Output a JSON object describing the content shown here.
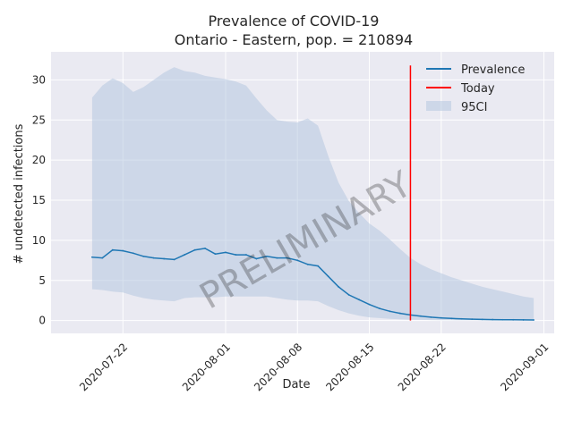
{
  "chart_data": {
    "type": "line",
    "title": "Prevalence of COVID-19",
    "subtitle": "Ontario - Eastern, pop. = 210894",
    "xlabel": "Date",
    "ylabel": "# undetected infections",
    "watermark": "PRELIMINARY",
    "x_axis": {
      "type": "date",
      "range": [
        "2020-07-15",
        "2020-09-02"
      ],
      "tick_labels": [
        "2020-07-22",
        "2020-08-01",
        "2020-08-08",
        "2020-08-15",
        "2020-08-22",
        "2020-09-01"
      ]
    },
    "y_axis": {
      "range": [
        -1.6,
        33.5
      ],
      "ticks": [
        0,
        5,
        10,
        15,
        20,
        25,
        30
      ]
    },
    "grid": true,
    "legend": {
      "position": "top-right",
      "entries": [
        {
          "label": "Prevalence",
          "kind": "line",
          "color": "#1f77b4"
        },
        {
          "label": "Today",
          "kind": "line",
          "color": "#ff0000"
        },
        {
          "label": "95CI",
          "kind": "patch",
          "color": "#b0c4de"
        }
      ]
    },
    "series": [
      {
        "name": "Prevalence",
        "color": "#1f77b4",
        "points": [
          [
            "2020-07-19",
            7.9
          ],
          [
            "2020-07-20",
            7.8
          ],
          [
            "2020-07-21",
            8.8
          ],
          [
            "2020-07-22",
            8.7
          ],
          [
            "2020-07-23",
            8.4
          ],
          [
            "2020-07-24",
            8.0
          ],
          [
            "2020-07-25",
            7.8
          ],
          [
            "2020-07-26",
            7.7
          ],
          [
            "2020-07-27",
            7.6
          ],
          [
            "2020-07-28",
            8.2
          ],
          [
            "2020-07-29",
            8.8
          ],
          [
            "2020-07-30",
            9.0
          ],
          [
            "2020-07-31",
            8.3
          ],
          [
            "2020-08-01",
            8.5
          ],
          [
            "2020-08-02",
            8.2
          ],
          [
            "2020-08-03",
            8.2
          ],
          [
            "2020-08-04",
            7.7
          ],
          [
            "2020-08-05",
            8.0
          ],
          [
            "2020-08-06",
            7.8
          ],
          [
            "2020-08-07",
            7.8
          ],
          [
            "2020-08-08",
            7.5
          ],
          [
            "2020-08-09",
            7.0
          ],
          [
            "2020-08-10",
            6.8
          ],
          [
            "2020-08-11",
            5.5
          ],
          [
            "2020-08-12",
            4.2
          ],
          [
            "2020-08-13",
            3.2
          ],
          [
            "2020-08-14",
            2.6
          ],
          [
            "2020-08-15",
            2.0
          ],
          [
            "2020-08-16",
            1.5
          ],
          [
            "2020-08-17",
            1.15
          ],
          [
            "2020-08-18",
            0.9
          ],
          [
            "2020-08-19",
            0.7
          ],
          [
            "2020-08-20",
            0.55
          ],
          [
            "2020-08-21",
            0.42
          ],
          [
            "2020-08-22",
            0.33
          ],
          [
            "2020-08-23",
            0.26
          ],
          [
            "2020-08-24",
            0.21
          ],
          [
            "2020-08-25",
            0.17
          ],
          [
            "2020-08-26",
            0.14
          ],
          [
            "2020-08-27",
            0.12
          ],
          [
            "2020-08-28",
            0.1
          ],
          [
            "2020-08-29",
            0.09
          ],
          [
            "2020-08-30",
            0.08
          ],
          [
            "2020-08-31",
            0.07
          ]
        ]
      }
    ],
    "band": {
      "name": "95CI",
      "color": "#b0c4de",
      "upper": [
        [
          "2020-07-19",
          27.8
        ],
        [
          "2020-07-20",
          29.3
        ],
        [
          "2020-07-21",
          30.2
        ],
        [
          "2020-07-22",
          29.6
        ],
        [
          "2020-07-23",
          28.5
        ],
        [
          "2020-07-24",
          29.1
        ],
        [
          "2020-07-25",
          30.0
        ],
        [
          "2020-07-26",
          30.9
        ],
        [
          "2020-07-27",
          31.6
        ],
        [
          "2020-07-28",
          31.1
        ],
        [
          "2020-07-29",
          30.9
        ],
        [
          "2020-07-30",
          30.5
        ],
        [
          "2020-07-31",
          30.3
        ],
        [
          "2020-08-01",
          30.1
        ],
        [
          "2020-08-02",
          29.8
        ],
        [
          "2020-08-03",
          29.3
        ],
        [
          "2020-08-04",
          27.7
        ],
        [
          "2020-08-05",
          26.2
        ],
        [
          "2020-08-06",
          25.0
        ],
        [
          "2020-08-07",
          24.8
        ],
        [
          "2020-08-08",
          24.7
        ],
        [
          "2020-08-09",
          25.2
        ],
        [
          "2020-08-10",
          24.3
        ],
        [
          "2020-08-11",
          20.5
        ],
        [
          "2020-08-12",
          17.2
        ],
        [
          "2020-08-13",
          14.9
        ],
        [
          "2020-08-14",
          13.4
        ],
        [
          "2020-08-15",
          12.1
        ],
        [
          "2020-08-16",
          11.2
        ],
        [
          "2020-08-17",
          10.1
        ],
        [
          "2020-08-18",
          8.9
        ],
        [
          "2020-08-19",
          7.8
        ],
        [
          "2020-08-20",
          7.0
        ],
        [
          "2020-08-21",
          6.4
        ],
        [
          "2020-08-22",
          5.9
        ],
        [
          "2020-08-23",
          5.4
        ],
        [
          "2020-08-24",
          5.0
        ],
        [
          "2020-08-25",
          4.6
        ],
        [
          "2020-08-26",
          4.2
        ],
        [
          "2020-08-27",
          3.9
        ],
        [
          "2020-08-28",
          3.6
        ],
        [
          "2020-08-29",
          3.3
        ],
        [
          "2020-08-30",
          3.0
        ],
        [
          "2020-08-31",
          2.8
        ]
      ],
      "lower": [
        [
          "2020-07-19",
          3.9
        ],
        [
          "2020-07-20",
          3.8
        ],
        [
          "2020-07-21",
          3.6
        ],
        [
          "2020-07-22",
          3.5
        ],
        [
          "2020-07-23",
          3.1
        ],
        [
          "2020-07-24",
          2.8
        ],
        [
          "2020-07-25",
          2.6
        ],
        [
          "2020-07-26",
          2.5
        ],
        [
          "2020-07-27",
          2.4
        ],
        [
          "2020-07-28",
          2.8
        ],
        [
          "2020-07-29",
          2.9
        ],
        [
          "2020-07-30",
          2.9
        ],
        [
          "2020-07-31",
          2.9
        ],
        [
          "2020-08-01",
          3.0
        ],
        [
          "2020-08-02",
          3.0
        ],
        [
          "2020-08-03",
          3.0
        ],
        [
          "2020-08-04",
          3.0
        ],
        [
          "2020-08-05",
          3.0
        ],
        [
          "2020-08-06",
          2.8
        ],
        [
          "2020-08-07",
          2.6
        ],
        [
          "2020-08-08",
          2.5
        ],
        [
          "2020-08-09",
          2.5
        ],
        [
          "2020-08-10",
          2.4
        ],
        [
          "2020-08-11",
          1.8
        ],
        [
          "2020-08-12",
          1.3
        ],
        [
          "2020-08-13",
          0.9
        ],
        [
          "2020-08-14",
          0.6
        ],
        [
          "2020-08-15",
          0.4
        ],
        [
          "2020-08-16",
          0.3
        ],
        [
          "2020-08-17",
          0.2
        ],
        [
          "2020-08-18",
          0.15
        ],
        [
          "2020-08-19",
          0.1
        ],
        [
          "2020-08-20",
          0.08
        ],
        [
          "2020-08-21",
          0.06
        ],
        [
          "2020-08-22",
          0.05
        ],
        [
          "2020-08-23",
          0.04
        ],
        [
          "2020-08-24",
          0.03
        ],
        [
          "2020-08-25",
          0.03
        ],
        [
          "2020-08-26",
          0.02
        ],
        [
          "2020-08-27",
          0.02
        ],
        [
          "2020-08-28",
          0.02
        ],
        [
          "2020-08-29",
          0.01
        ],
        [
          "2020-08-30",
          0.01
        ],
        [
          "2020-08-31",
          0.01
        ]
      ]
    },
    "today_marker": {
      "name": "Today",
      "date": "2020-08-19",
      "y_range": [
        0,
        31.8
      ],
      "color": "#ff0000"
    }
  }
}
